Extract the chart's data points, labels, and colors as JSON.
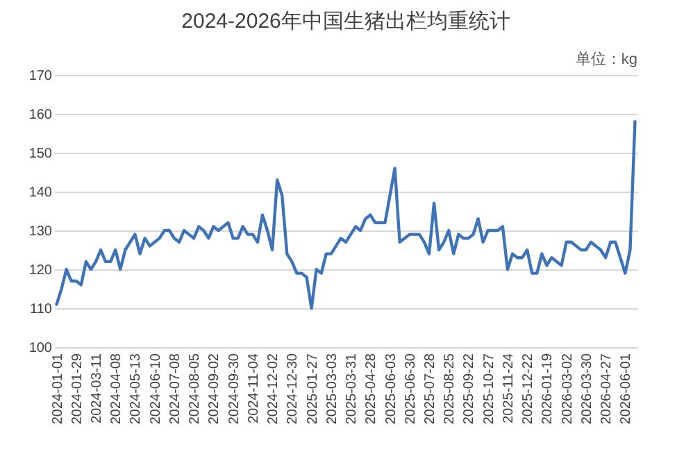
{
  "chart_data": {
    "type": "line",
    "title": "2024-2026年中国生猪出栏均重统计",
    "annotations": [
      "单位：kg"
    ],
    "categories": [
      "2024-01-01",
      null,
      null,
      null,
      "2024-01-29",
      null,
      null,
      null,
      "2024-03-11",
      null,
      null,
      null,
      "2024-04-08",
      null,
      null,
      null,
      "2024-05-13",
      null,
      null,
      null,
      "2024-06-10",
      null,
      null,
      null,
      "2024-07-08",
      null,
      null,
      null,
      "2024-08-05",
      null,
      null,
      null,
      "2024-09-02",
      null,
      null,
      null,
      "2024-09-30",
      null,
      null,
      null,
      "2024-11-04",
      null,
      null,
      null,
      "2024-12-02",
      null,
      null,
      null,
      "2024-12-30",
      null,
      null,
      null,
      "2025-01-27",
      null,
      null,
      null,
      "2025-03-03",
      null,
      null,
      null,
      "2025-03-31",
      null,
      null,
      null,
      "2025-04-28",
      null,
      null,
      null,
      "2025-06-03",
      null,
      null,
      null,
      "2025-06-30",
      null,
      null,
      null,
      "2025-07-28",
      null,
      null,
      null,
      "2025-08-25",
      null,
      null,
      null,
      "2025-09-22",
      null,
      null,
      null,
      "2025-10-27",
      null,
      null,
      null,
      "2025-11-24",
      null,
      null,
      null,
      "2025-12-22",
      null,
      null,
      null,
      "2026-01-19",
      null,
      null,
      null,
      "2026-03-02",
      null,
      null,
      null,
      "2026-03-30",
      null,
      null,
      null,
      "2026-04-27",
      null,
      null,
      null,
      "2026-06-01",
      null,
      null
    ],
    "series": [
      {
        "color": "#3f73b8",
        "values": [
          111,
          115,
          120,
          117,
          117,
          116,
          122,
          120,
          122,
          125,
          122,
          122,
          125,
          120,
          125,
          127,
          129,
          124,
          128,
          126,
          127,
          128,
          130,
          130,
          128,
          127,
          130,
          129,
          128,
          131,
          130,
          128,
          131,
          130,
          131,
          132,
          128,
          128,
          131,
          129,
          129,
          127,
          134,
          130,
          125,
          143,
          139,
          124,
          122,
          119,
          119,
          118,
          110,
          120,
          119,
          124,
          124,
          126,
          128,
          127,
          129,
          131,
          130,
          133,
          134,
          132,
          132,
          132,
          139,
          146,
          127,
          128,
          129,
          129,
          129,
          127,
          124,
          137,
          125,
          127,
          130,
          124,
          129,
          128,
          128,
          129,
          133,
          127,
          130,
          130,
          130,
          131,
          120,
          124,
          123,
          123,
          125,
          119,
          119,
          124,
          121,
          123,
          122,
          121,
          127,
          127,
          126,
          125,
          125,
          127,
          126,
          125,
          123,
          127,
          127,
          123,
          119,
          125,
          158
        ]
      }
    ],
    "ylim": [
      100,
      170
    ],
    "yticks": [
      100,
      110,
      120,
      130,
      140,
      150,
      160,
      170
    ],
    "grid": "y",
    "marker": "none",
    "line_style": "solid"
  }
}
